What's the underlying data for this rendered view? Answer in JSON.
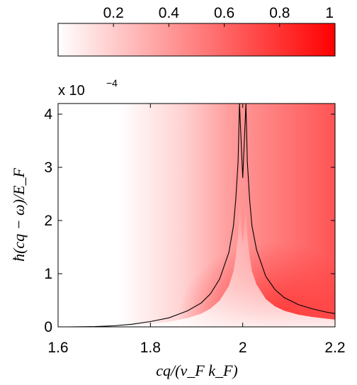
{
  "chart_data": {
    "type": "heatmap",
    "title": "",
    "xlabel": "cq/(v_F k_F)",
    "ylabel": "ħ(cq − ω)/E_F",
    "xlim": [
      1.6,
      2.2
    ],
    "ylim": [
      0,
      4.2
    ],
    "x_ticks": [
      "1.6",
      "1.8",
      "2",
      "2.2"
    ],
    "y_ticks": [
      "0",
      "1",
      "2",
      "3",
      "4"
    ],
    "y_multiplier": {
      "prefix": "x 10",
      "exponent": "−4"
    },
    "colorbar": {
      "range": [
        0,
        1
      ],
      "ticks": [
        "0.2",
        "0.4",
        "0.6",
        "0.8",
        "1"
      ],
      "color_low": "#ffffff",
      "color_high": "#ff0000"
    },
    "curve": {
      "color": "#000000",
      "x": [
        1.62,
        1.68,
        1.72,
        1.76,
        1.8,
        1.84,
        1.88,
        1.91,
        1.93,
        1.95,
        1.97,
        1.98,
        1.985,
        1.99,
        1.993,
        2.0,
        2.007,
        2.01,
        2.015,
        2.02,
        2.03,
        2.05,
        2.07,
        2.09,
        2.12,
        2.15,
        2.18,
        2.2
      ],
      "y": [
        0.0,
        0.005,
        0.02,
        0.05,
        0.1,
        0.17,
        0.3,
        0.45,
        0.62,
        0.9,
        1.4,
        1.9,
        2.4,
        3.1,
        4.2,
        2.8,
        4.2,
        3.1,
        2.4,
        1.9,
        1.45,
        0.95,
        0.7,
        0.55,
        0.42,
        0.34,
        0.28,
        0.25
      ]
    }
  }
}
